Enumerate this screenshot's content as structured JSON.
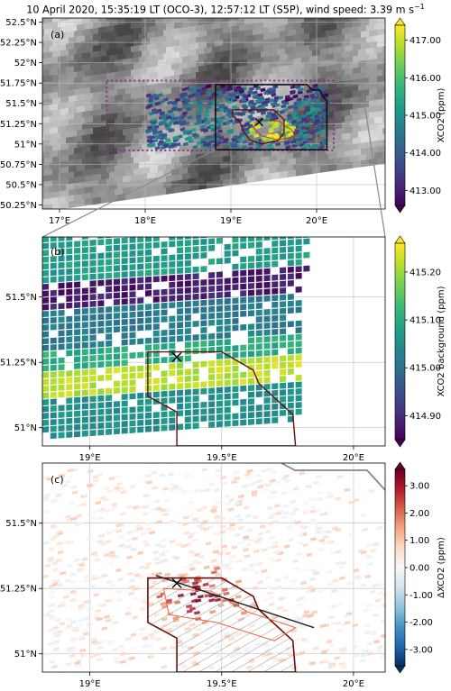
{
  "figure": {
    "title": "10 April 2020, 15:35:19 LT (OCO-3), 12:57:12 LT (S5P), wind speed: 3.39 m s",
    "title_sup": "−1"
  },
  "chart_data": [
    {
      "panel": "(a)",
      "type": "heatmap",
      "xlim": [
        16.8,
        20.8
      ],
      "ylim": [
        50.2,
        52.55
      ],
      "xticks": [
        17,
        18,
        19,
        20
      ],
      "xtick_labels": [
        "17°E",
        "18°E",
        "19°E",
        "20°E"
      ],
      "yticks": [
        50.25,
        50.5,
        50.75,
        51.0,
        51.25,
        51.5,
        51.75,
        52.0,
        52.25,
        52.5
      ],
      "ytick_labels": [
        "50.25°N",
        "50.5°N",
        "50.75°N",
        "51°N",
        "51.25°N",
        "51.5°N",
        "51.75°N",
        "52°N",
        "52.25°N",
        "52.5°N"
      ],
      "grid": true,
      "background": "grayscale satellite imagery",
      "colorbar": {
        "label": "XCO2 (ppm)",
        "colormap": "viridis",
        "range": [
          412.6,
          417.4
        ],
        "ticks": [
          413.0,
          414.0,
          415.0,
          416.0,
          417.0
        ],
        "tick_labels": [
          "413.00",
          "414.00",
          "415.00",
          "416.00",
          "417.00"
        ]
      },
      "overlays": {
        "dotted_box_color": "#8b2f8b",
        "dotted_box": {
          "lon": [
            17.55,
            20.2
          ],
          "lat": [
            50.92,
            51.78
          ]
        },
        "zoom_box": {
          "lon": [
            18.82,
            20.12
          ],
          "lat": [
            50.93,
            51.73
          ]
        },
        "source_marker": {
          "lon": 19.33,
          "lat": 51.27,
          "symbol": "x"
        }
      }
    },
    {
      "panel": "(b)",
      "type": "heatmap",
      "xlim": [
        18.82,
        20.12
      ],
      "ylim": [
        50.93,
        51.73
      ],
      "xticks": [
        19.0,
        19.5,
        20.0
      ],
      "xtick_labels": [
        "19°E",
        "19.5°E",
        "20°E"
      ],
      "yticks": [
        51.0,
        51.25,
        51.5
      ],
      "ytick_labels": [
        "51°N",
        "51.25°N",
        "51.5°N"
      ],
      "grid": true,
      "colorbar": {
        "label": "XCO2 background (ppm)",
        "colormap": "viridis",
        "range": [
          414.85,
          415.26
        ],
        "ticks": [
          414.9,
          415.0,
          415.1,
          415.2
        ],
        "tick_labels": [
          "414.90",
          "415.00",
          "415.10",
          "415.20"
        ]
      },
      "overlays": {
        "source_marker": {
          "lon": 19.33,
          "lat": 51.27,
          "symbol": "x"
        }
      }
    },
    {
      "panel": "(c)",
      "type": "heatmap",
      "xlim": [
        18.82,
        20.12
      ],
      "ylim": [
        50.93,
        51.73
      ],
      "xticks": [
        19.0,
        19.5,
        20.0
      ],
      "xtick_labels": [
        "19°E",
        "19.5°E",
        "20°E"
      ],
      "yticks": [
        51.0,
        51.25,
        51.5
      ],
      "ytick_labels": [
        "51°N",
        "51.25°N",
        "51.5°N"
      ],
      "grid": true,
      "colorbar": {
        "label": "ΔXCO2 (ppm)",
        "colormap": "RdBu_r",
        "range": [
          -3.6,
          3.6
        ],
        "ticks": [
          -3.0,
          -2.0,
          -1.0,
          0.0,
          1.0,
          2.0,
          3.0
        ],
        "tick_labels": [
          "-3.00",
          "-2.00",
          "-1.00",
          "0.00",
          "1.00",
          "2.00",
          "3.00"
        ]
      },
      "overlays": {
        "source_marker": {
          "lon": 19.33,
          "lat": 51.27,
          "symbol": "x"
        },
        "plume_axis": {
          "lon": [
            19.25,
            19.85
          ],
          "lat": [
            51.3,
            51.1
          ]
        }
      }
    }
  ]
}
